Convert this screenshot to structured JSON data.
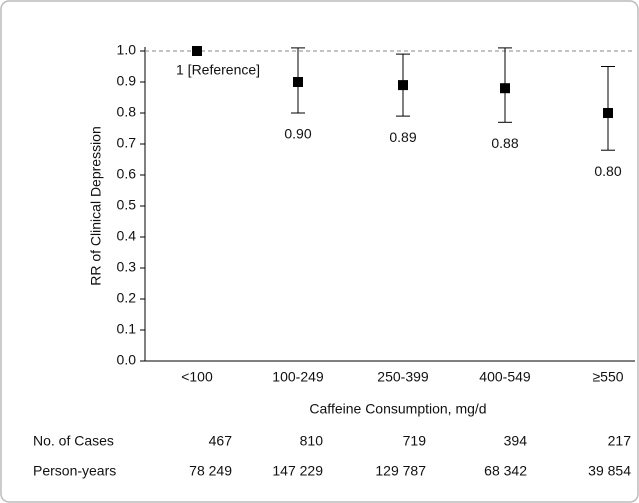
{
  "chart_data": {
    "type": "errorbar",
    "y_label": "RR of Clinical Depression",
    "x_label": "Caffeine Consumption, mg/d",
    "categories": [
      "<100",
      "100-249",
      "250-399",
      "400-549",
      "≥550"
    ],
    "values": [
      1,
      0.9,
      0.89,
      0.88,
      0.8
    ],
    "value_labels": [
      "1 [Reference]",
      "0.90",
      "0.89",
      "0.88",
      "0.80"
    ],
    "ci_lower": [
      null,
      0.8,
      0.79,
      0.77,
      0.68
    ],
    "ci_upper": [
      null,
      1.01,
      0.99,
      1.01,
      0.95
    ],
    "color": "#000000",
    "reference_line": 1,
    "ylim": [
      0,
      1
    ],
    "yticks": [
      {
        "value": 0,
        "label": "0.0"
      },
      0.1,
      0.2,
      0.3,
      0.4,
      0.5,
      0.6,
      0.7,
      0.8,
      0.9,
      {
        "value": 1,
        "label": "1.0"
      }
    ],
    "table": {
      "rows": [
        {
          "label": "No. of Cases",
          "cells": [
            "467",
            "810",
            "719",
            "394",
            "217"
          ]
        },
        {
          "label": "Person-years",
          "cells": [
            "78 249",
            "147 229",
            "129 787",
            "68 342",
            "39 854"
          ]
        }
      ]
    }
  }
}
